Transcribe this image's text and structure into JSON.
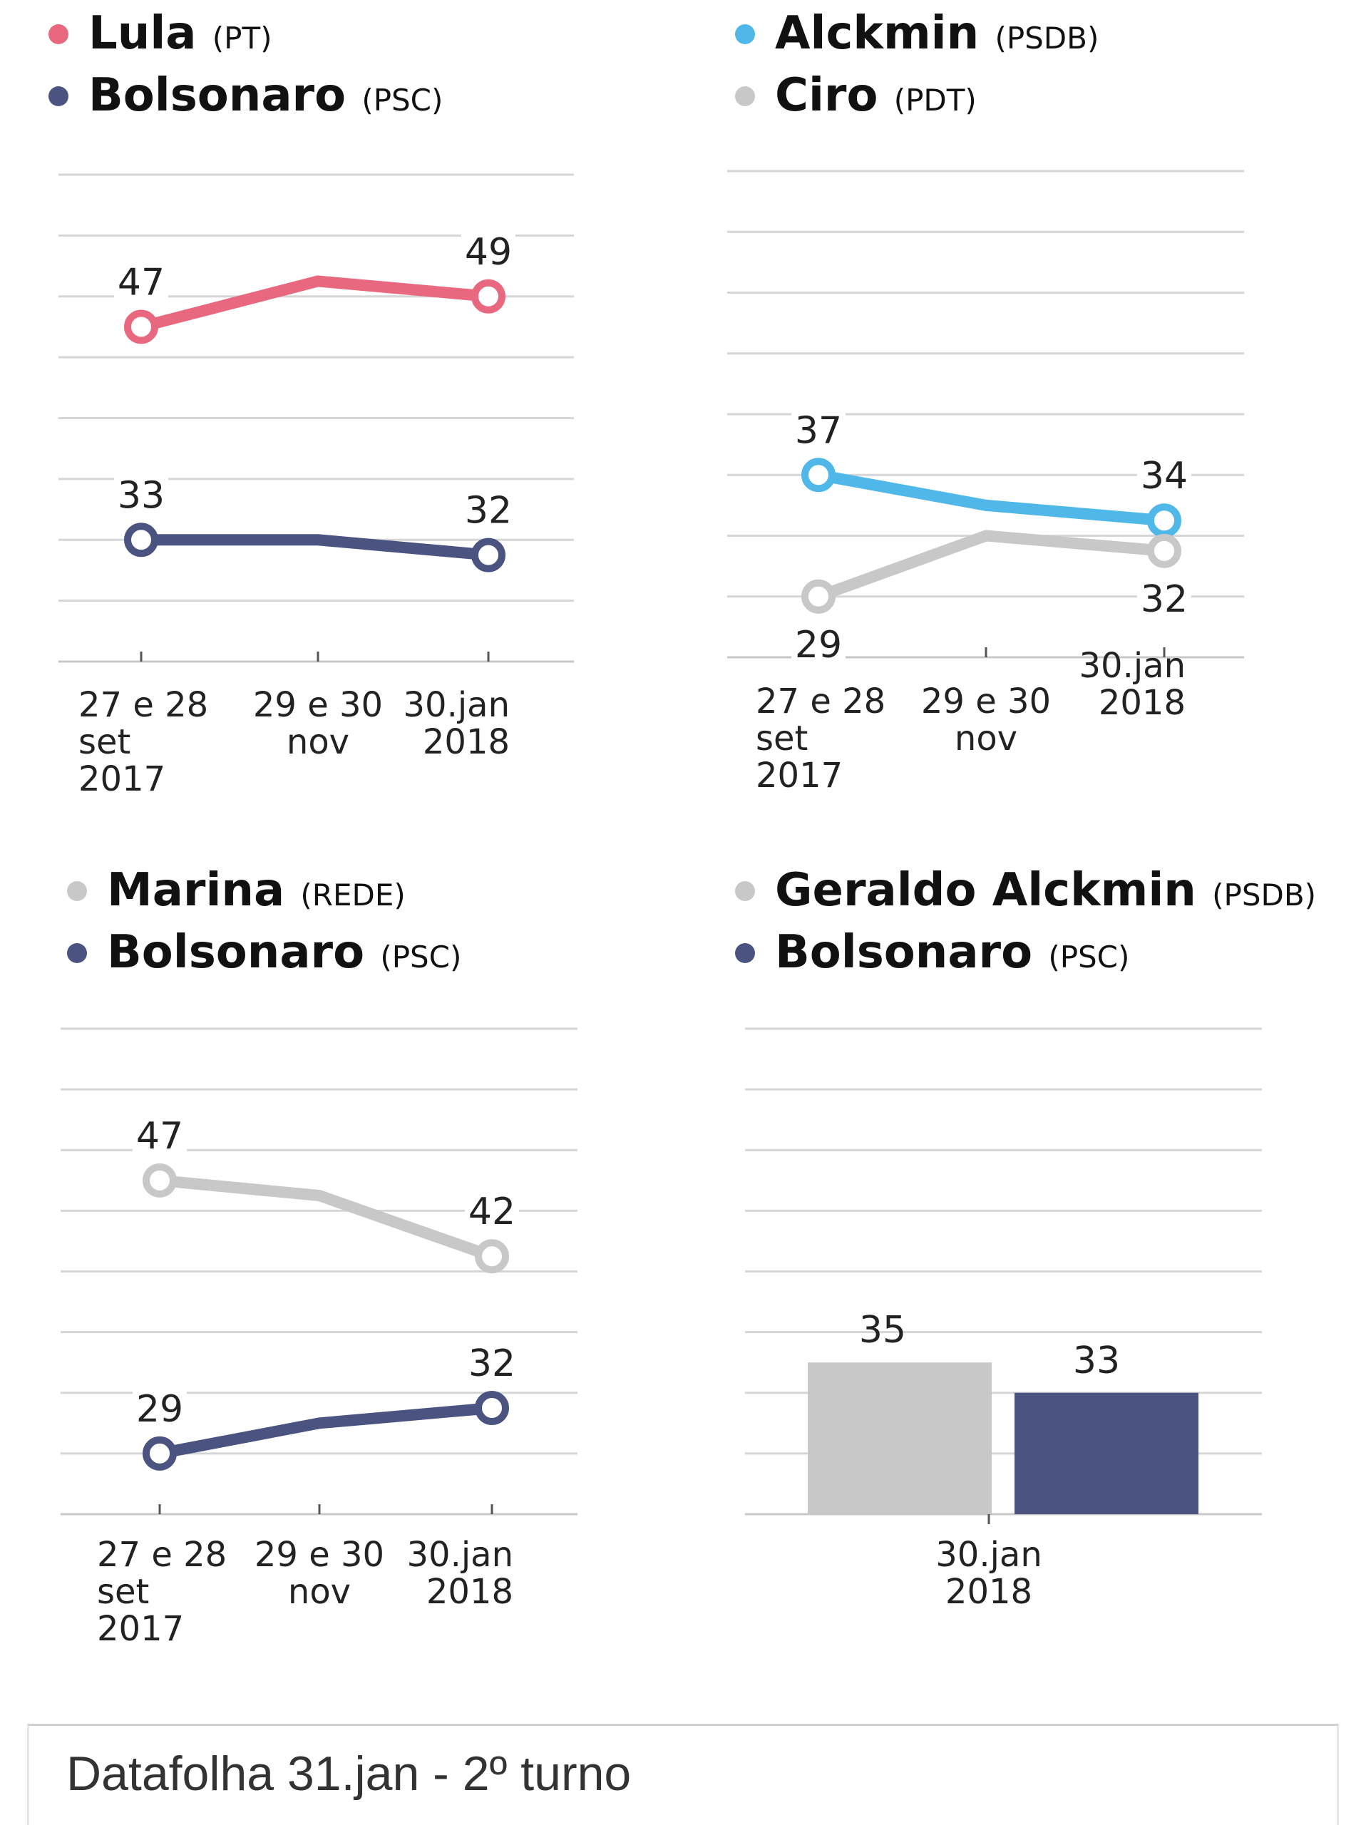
{
  "footer": {
    "text": "Datafolha 31.jan - 2º turno"
  },
  "chart_data": [
    {
      "type": "line",
      "legend": [
        {
          "name": "Lula",
          "party": "(PT)",
          "color": "#e8697f"
        },
        {
          "name": "Bolsonaro",
          "party": "(PSC)",
          "color": "#4b5381"
        }
      ],
      "categories": [
        [
          "27 e 28",
          "set",
          "2017"
        ],
        [
          "29 e 30",
          "nov"
        ],
        [
          "30.jan",
          "2018"
        ]
      ],
      "series": [
        {
          "name": "Lula",
          "color": "#e8697f",
          "values": [
            47,
            50,
            49
          ],
          "labels": [
            "47",
            null,
            "49"
          ]
        },
        {
          "name": "Bolsonaro",
          "color": "#4b5381",
          "values": [
            33,
            33,
            32
          ],
          "labels": [
            "33",
            null,
            "32"
          ]
        }
      ],
      "ylim": [
        25,
        57
      ]
    },
    {
      "type": "line",
      "legend": [
        {
          "name": "Alckmin",
          "party": "(PSDB)",
          "color": "#4fb8e8"
        },
        {
          "name": "Ciro",
          "party": "(PDT)",
          "color": "#c8c8c8"
        }
      ],
      "categories": [
        [
          "27 e 28",
          "set",
          "2017"
        ],
        [
          "29 e 30",
          "nov"
        ],
        [
          "30.jan",
          "2018"
        ]
      ],
      "series": [
        {
          "name": "Alckmin",
          "color": "#4fb8e8",
          "values": [
            37,
            35,
            34
          ],
          "labels": [
            "37",
            null,
            "34"
          ]
        },
        {
          "name": "Ciro",
          "color": "#c8c8c8",
          "values": [
            29,
            33,
            32
          ],
          "labels": [
            "29",
            null,
            "32"
          ]
        }
      ],
      "ylim": [
        25,
        57
      ]
    },
    {
      "type": "line",
      "legend": [
        {
          "name": "Marina",
          "party": "(REDE)",
          "color": "#c8c8c8"
        },
        {
          "name": "Bolsonaro",
          "party": "(PSC)",
          "color": "#4b5381"
        }
      ],
      "categories": [
        [
          "27 e 28",
          "set",
          "2017"
        ],
        [
          "29 e 30",
          "nov"
        ],
        [
          "30.jan",
          "2018"
        ]
      ],
      "series": [
        {
          "name": "Marina",
          "color": "#c8c8c8",
          "values": [
            47,
            46,
            42
          ],
          "labels": [
            "47",
            null,
            "42"
          ]
        },
        {
          "name": "Bolsonaro",
          "color": "#4b5381",
          "values": [
            29,
            31,
            32
          ],
          "labels": [
            "29",
            null,
            "32"
          ]
        }
      ],
      "ylim": [
        25,
        57
      ]
    },
    {
      "type": "bar",
      "legend": [
        {
          "name": "Geraldo Alckmin",
          "party": "(PSDB)",
          "color": "#c8c8c8"
        },
        {
          "name": "Bolsonaro",
          "party": "(PSC)",
          "color": "#4b5381"
        }
      ],
      "categories": [
        [
          "30.jan",
          "2018"
        ]
      ],
      "series": [
        {
          "name": "Geraldo Alckmin",
          "color": "#c8c8c8",
          "values": [
            35
          ],
          "labels": [
            "35"
          ]
        },
        {
          "name": "Bolsonaro",
          "color": "#4b5381",
          "values": [
            33
          ],
          "labels": [
            "33"
          ]
        }
      ],
      "ylim": [
        25,
        57
      ]
    }
  ]
}
